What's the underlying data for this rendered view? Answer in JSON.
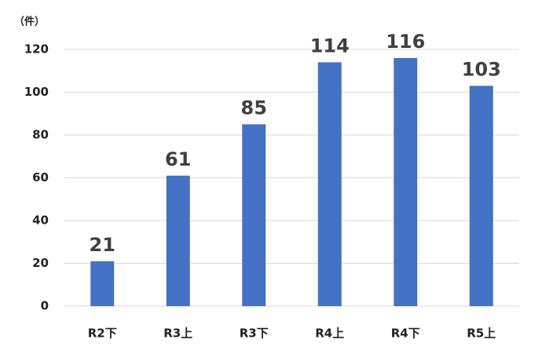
{
  "chart_data": {
    "type": "bar",
    "y_label": "（件）",
    "categories": [
      "R2下",
      "R3上",
      "R3下",
      "R4上",
      "R4下",
      "R5上"
    ],
    "values": [
      21,
      61,
      85,
      114,
      116,
      103
    ],
    "color": "#4472c4",
    "ylim": [
      0,
      120
    ],
    "yticks": [
      0,
      20,
      40,
      60,
      80,
      100,
      120
    ],
    "grid": true
  }
}
